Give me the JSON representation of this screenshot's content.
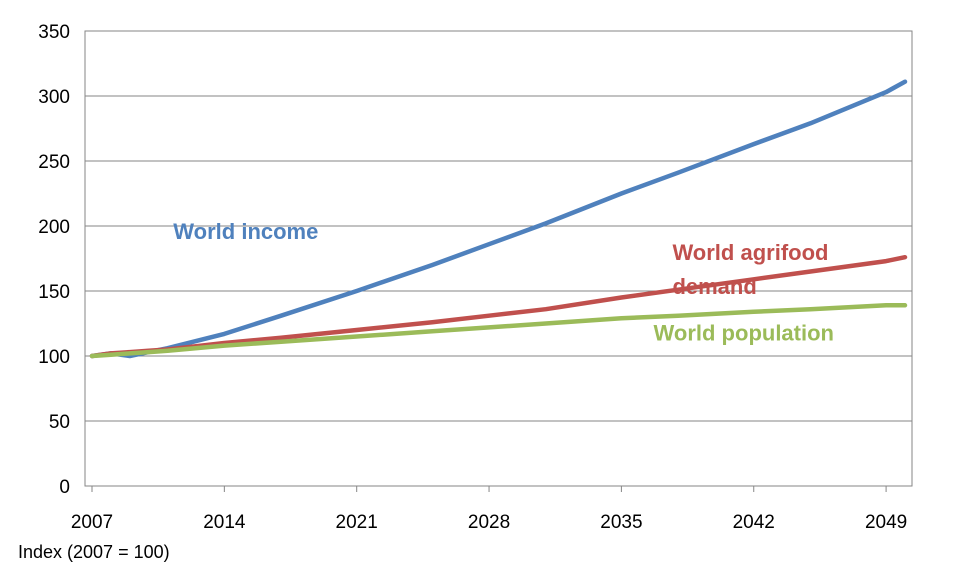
{
  "chart_data": {
    "type": "line",
    "xlim": [
      2007,
      2050
    ],
    "ylim": [
      0,
      350
    ],
    "x_ticks": [
      "2007",
      "2014",
      "2021",
      "2028",
      "2035",
      "2042",
      "2049"
    ],
    "y_ticks": [
      "0",
      "50",
      "100",
      "150",
      "200",
      "250",
      "300",
      "350"
    ],
    "grid": "horizontal",
    "legend": "none",
    "note": "Index (2007 = 100)",
    "x": [
      2007,
      2008,
      2009,
      2010,
      2011,
      2014,
      2017,
      2021,
      2025,
      2028,
      2031,
      2035,
      2038,
      2042,
      2045,
      2049,
      2050
    ],
    "series": [
      {
        "name": "World income",
        "color": "#4f81bd",
        "values": [
          100,
          102,
          100,
          103,
          106,
          117,
          131,
          150,
          170,
          186,
          202,
          225,
          241,
          263,
          279,
          303,
          311
        ]
      },
      {
        "name": "World agrifood demand",
        "color": "#c0504d",
        "values": [
          100,
          102,
          103,
          104,
          105,
          110,
          114,
          120,
          126,
          131,
          136,
          145,
          151,
          159,
          165,
          173,
          176
        ]
      },
      {
        "name": "World population",
        "color": "#9bbb59",
        "values": [
          100,
          101,
          102,
          103,
          104,
          108,
          111,
          115,
          119,
          122,
          125,
          129,
          131,
          134,
          136,
          139,
          139
        ]
      }
    ],
    "annotations": [
      {
        "lines": [
          "World income"
        ],
        "color": "#4f81bd",
        "x": 2011.3,
        "y": 190
      },
      {
        "lines": [
          "World agrifood",
          "demand"
        ],
        "color": "#c0504d",
        "x": 2037.7,
        "y": 174
      },
      {
        "lines": [
          "World population"
        ],
        "color": "#9bbb59",
        "x": 2036.7,
        "y": 112
      }
    ]
  }
}
